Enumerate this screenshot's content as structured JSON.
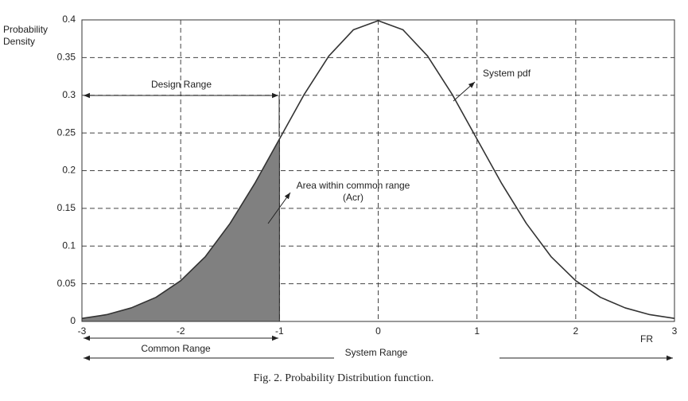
{
  "chart_data": {
    "type": "line",
    "ylabel": "Probability Density",
    "xlabel": "FR",
    "caption": "Fig. 2.  Probability Distribution function.",
    "annotations": {
      "design_range": "Design Range",
      "common_range": "Common Range",
      "system_range": "System Range",
      "area": "Area within common range (Acr)",
      "system_pdf": "System pdf"
    },
    "x": [
      -3,
      -2.75,
      -2.5,
      -2.25,
      -2,
      -1.75,
      -1.5,
      -1.25,
      -1,
      -0.75,
      -0.5,
      -0.25,
      0,
      0.25,
      0.5,
      0.75,
      1,
      1.25,
      1.5,
      1.75,
      2,
      2.25,
      2.5,
      2.75,
      3
    ],
    "series": [
      {
        "name": "System pdf",
        "color": "#333333",
        "values": [
          0.004,
          0.009,
          0.018,
          0.032,
          0.054,
          0.086,
          0.13,
          0.183,
          0.242,
          0.301,
          0.352,
          0.387,
          0.399,
          0.387,
          0.352,
          0.301,
          0.242,
          0.183,
          0.13,
          0.086,
          0.054,
          0.032,
          0.018,
          0.009,
          0.004
        ]
      }
    ],
    "shade_color": "#808080",
    "xlim": [
      -3,
      3
    ],
    "xticks": [
      -3,
      -2,
      -1,
      0,
      1,
      2,
      3
    ],
    "ylim": [
      0,
      0.4
    ],
    "yticks": [
      0,
      0.05,
      0.1,
      0.15,
      0.2,
      0.25,
      0.3,
      0.35,
      0.4
    ],
    "grid": true
  }
}
